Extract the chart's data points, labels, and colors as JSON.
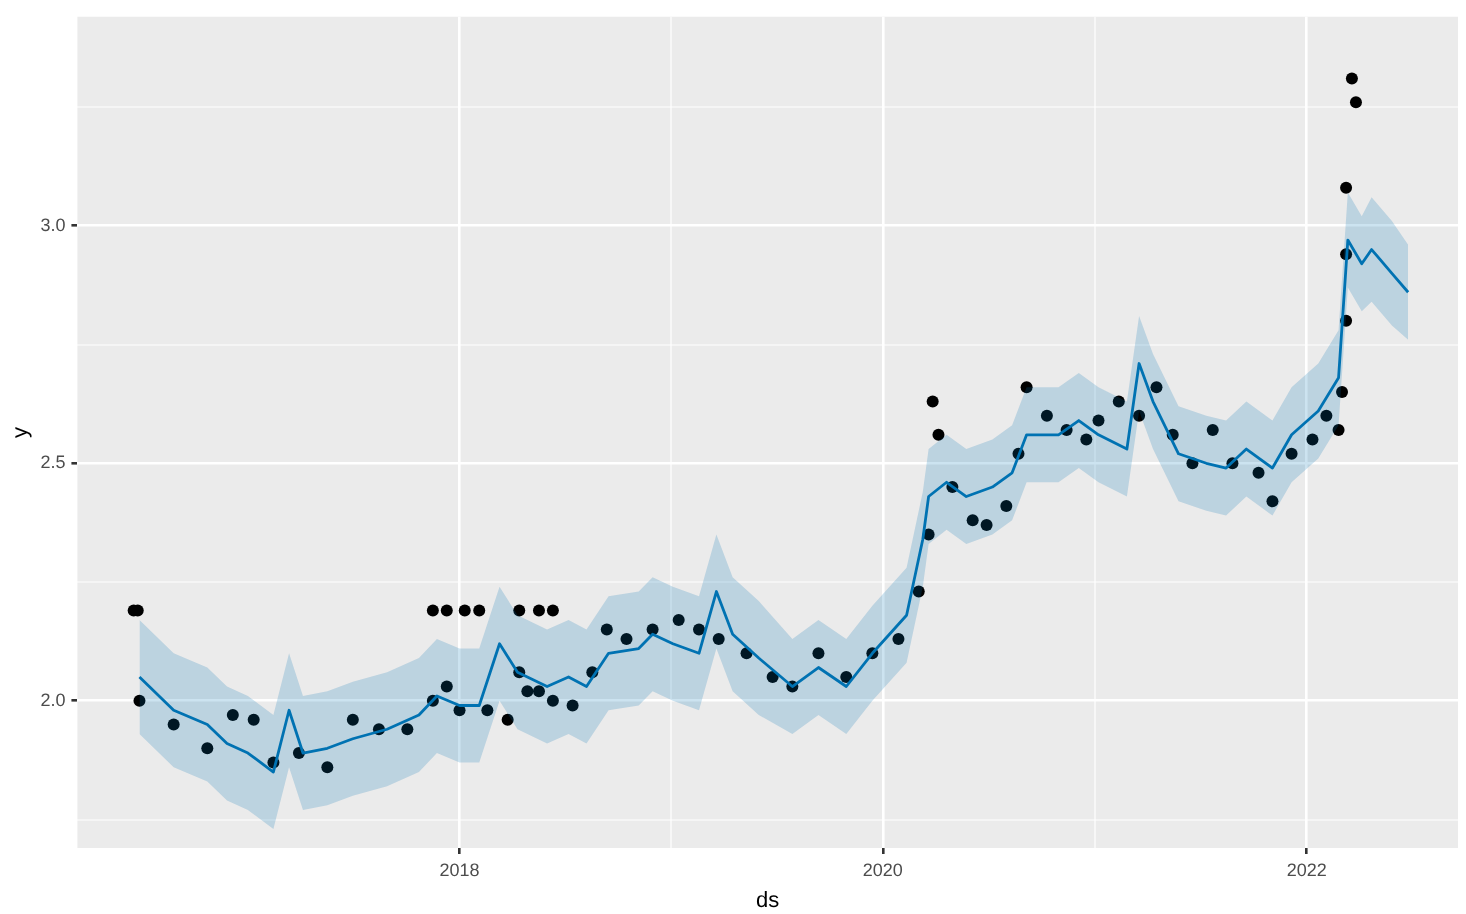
{
  "chart_data": {
    "type": "scatter",
    "xlabel": "ds",
    "ylabel": "y",
    "xlim": [
      "2016-03-13",
      "2022-09-19"
    ],
    "ylim": [
      1.69,
      3.44
    ],
    "xticks": [
      {
        "value": "2018",
        "label": "2018"
      },
      {
        "value": "2019",
        "label": null
      },
      {
        "value": "2020",
        "label": "2020"
      },
      {
        "value": "2021",
        "label": null
      },
      {
        "value": "2022",
        "label": "2022"
      }
    ],
    "yticks": [
      {
        "value": 1.75,
        "label": null
      },
      {
        "value": 2,
        "label": "2.0"
      },
      {
        "value": 2.25,
        "label": null
      },
      {
        "value": 2.5,
        "label": "2.5"
      },
      {
        "value": 2.75,
        "label": null
      },
      {
        "value": 3,
        "label": "3.0"
      },
      {
        "value": 3.25,
        "label": null
      }
    ],
    "grid": true,
    "series": [
      {
        "marker": "circle",
        "color": "#000000",
        "x": [
          "2016-06-18",
          "2016-06-25",
          "2016-06-28",
          "2016-08-26",
          "2016-10-23",
          "2016-12-06",
          "2017-01-11",
          "2017-02-14",
          "2017-03-30",
          "2017-05-18",
          "2017-07-01",
          "2017-08-15",
          "2017-10-03",
          "2017-11-16",
          "2017-11-16",
          "2017-12-10",
          "2017-12-10",
          "2018-01-01",
          "2018-01-10",
          "2018-02-04",
          "2018-02-18",
          "2018-03-25",
          "2018-04-14",
          "2018-04-14",
          "2018-04-28",
          "2018-05-18",
          "2018-05-18",
          "2018-06-11",
          "2018-06-11",
          "2018-07-15",
          "2018-08-18",
          "2018-09-12",
          "2018-10-16",
          "2018-11-30",
          "2019-01-14",
          "2019-02-18",
          "2019-03-24",
          "2019-05-11",
          "2019-06-25",
          "2019-07-29",
          "2019-09-12",
          "2019-10-30",
          "2019-12-14",
          "2020-01-28",
          "2020-03-03",
          "2020-03-20",
          "2020-03-27",
          "2020-04-06",
          "2020-04-30",
          "2020-06-04",
          "2020-06-28",
          "2020-08-01",
          "2020-08-22",
          "2020-09-05",
          "2020-10-10",
          "2020-11-13",
          "2020-12-17",
          "2021-01-07",
          "2021-02-11",
          "2021-03-18",
          "2021-04-17",
          "2021-05-15",
          "2021-06-18",
          "2021-07-23",
          "2021-08-26",
          "2021-10-10",
          "2021-11-03",
          "2021-12-06",
          "2022-01-11",
          "2022-02-04",
          "2022-02-25",
          "2022-03-03",
          "2022-03-10",
          "2022-03-10",
          "2022-03-10",
          "2022-03-20",
          "2022-03-27"
        ],
        "values": [
          2.19,
          2.19,
          2.0,
          1.95,
          1.9,
          1.97,
          1.96,
          1.87,
          1.89,
          1.86,
          1.96,
          1.94,
          1.94,
          2.0,
          2.19,
          2.03,
          2.19,
          1.98,
          2.19,
          2.19,
          1.98,
          1.96,
          2.06,
          2.19,
          2.02,
          2.02,
          2.19,
          2.0,
          2.19,
          1.99,
          2.06,
          2.15,
          2.13,
          2.15,
          2.17,
          2.15,
          2.13,
          2.1,
          2.05,
          2.03,
          2.1,
          2.05,
          2.1,
          2.13,
          2.23,
          2.35,
          2.63,
          2.56,
          2.45,
          2.38,
          2.37,
          2.41,
          2.52,
          2.66,
          2.6,
          2.57,
          2.55,
          2.59,
          2.63,
          2.6,
          2.66,
          2.56,
          2.5,
          2.57,
          2.5,
          2.48,
          2.42,
          2.52,
          2.55,
          2.6,
          2.57,
          2.65,
          2.8,
          2.94,
          3.08,
          3.31,
          3.26
        ]
      },
      {
        "type": "line",
        "color": "#0072b2",
        "x": [
          "2016-06-28",
          "2016-08-26",
          "2016-10-23",
          "2016-11-26",
          "2017-01-01",
          "2017-02-14",
          "2017-03-13",
          "2017-04-06",
          "2017-05-18",
          "2017-07-01",
          "2017-08-29",
          "2017-10-23",
          "2017-11-23",
          "2018-01-01",
          "2018-02-04",
          "2018-03-11",
          "2018-04-11",
          "2018-06-01",
          "2018-07-08",
          "2018-08-08",
          "2018-09-15",
          "2018-11-06",
          "2018-11-30",
          "2019-01-04",
          "2019-02-18",
          "2019-03-20",
          "2019-04-17",
          "2019-06-01",
          "2019-07-29",
          "2019-09-12",
          "2019-10-30",
          "2019-12-14",
          "2020-02-11",
          "2020-03-10",
          "2020-03-20",
          "2020-04-20",
          "2020-05-24",
          "2020-07-08",
          "2020-08-11",
          "2020-09-05",
          "2020-10-30",
          "2020-12-04",
          "2021-01-07",
          "2021-02-25",
          "2021-03-18",
          "2021-04-11",
          "2021-05-25",
          "2021-07-12",
          "2021-08-15",
          "2021-09-19",
          "2021-11-03",
          "2021-12-06",
          "2022-01-21",
          "2022-02-25",
          "2022-03-13",
          "2022-04-06",
          "2022-04-23",
          "2022-05-28",
          "2022-06-25"
        ],
        "values": [
          2.05,
          1.98,
          1.95,
          1.91,
          1.89,
          1.85,
          1.98,
          1.89,
          1.9,
          1.92,
          1.94,
          1.97,
          2.01,
          1.99,
          1.99,
          2.12,
          2.06,
          2.03,
          2.05,
          2.03,
          2.1,
          2.11,
          2.14,
          2.12,
          2.1,
          2.23,
          2.14,
          2.09,
          2.03,
          2.07,
          2.03,
          2.1,
          2.18,
          2.34,
          2.43,
          2.46,
          2.43,
          2.45,
          2.48,
          2.56,
          2.56,
          2.59,
          2.56,
          2.53,
          2.71,
          2.63,
          2.52,
          2.5,
          2.49,
          2.53,
          2.49,
          2.56,
          2.61,
          2.68,
          2.97,
          2.92,
          2.95,
          2.9,
          2.86
        ],
        "lower": [
          1.93,
          1.86,
          1.83,
          1.79,
          1.77,
          1.73,
          1.86,
          1.77,
          1.78,
          1.8,
          1.82,
          1.85,
          1.89,
          1.87,
          1.87,
          2.0,
          1.94,
          1.91,
          1.93,
          1.91,
          1.98,
          1.99,
          2.02,
          2.0,
          1.98,
          2.11,
          2.02,
          1.97,
          1.93,
          1.97,
          1.93,
          2.0,
          2.08,
          2.24,
          2.33,
          2.36,
          2.33,
          2.35,
          2.38,
          2.46,
          2.46,
          2.49,
          2.46,
          2.43,
          2.61,
          2.53,
          2.42,
          2.4,
          2.39,
          2.43,
          2.39,
          2.46,
          2.51,
          2.58,
          2.87,
          2.82,
          2.84,
          2.79,
          2.76
        ],
        "upper": [
          2.17,
          2.1,
          2.07,
          2.03,
          2.01,
          1.97,
          2.1,
          2.01,
          2.02,
          2.04,
          2.06,
          2.09,
          2.13,
          2.11,
          2.11,
          2.24,
          2.18,
          2.15,
          2.17,
          2.15,
          2.22,
          2.23,
          2.26,
          2.24,
          2.22,
          2.35,
          2.26,
          2.21,
          2.13,
          2.17,
          2.13,
          2.2,
          2.28,
          2.44,
          2.53,
          2.56,
          2.53,
          2.55,
          2.58,
          2.66,
          2.66,
          2.69,
          2.66,
          2.63,
          2.81,
          2.73,
          2.62,
          2.6,
          2.59,
          2.63,
          2.59,
          2.66,
          2.71,
          2.78,
          3.07,
          3.02,
          3.06,
          3.01,
          2.96
        ]
      }
    ]
  }
}
